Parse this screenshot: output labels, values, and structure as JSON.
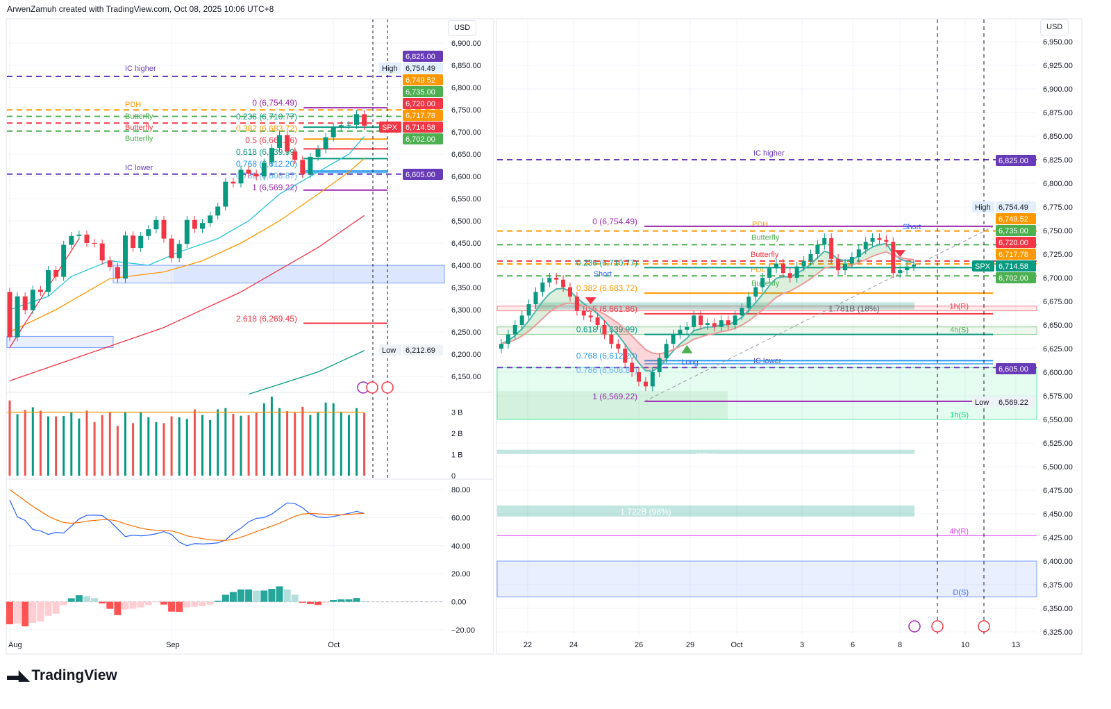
{
  "header": {
    "text": "ArwenZamuh created with TradingView.com, Oct 08, 2025 10:06 UTC+8"
  },
  "logo": {
    "text": "TradingView"
  },
  "currency": "USD",
  "colors": {
    "up": "#089981",
    "down": "#f23645",
    "purple": "#673ab7",
    "orange": "#ff9800",
    "green": "#4caf50",
    "red": "#f23645",
    "blue": "#2196f3",
    "teal": "#089981"
  },
  "chart_data": [
    {
      "type": "candlestick",
      "symbol": "SPX",
      "timeframe": "daily",
      "x_ticks": [
        {
          "label": "Aug",
          "index": 0
        },
        {
          "label": "Sep",
          "index": 21
        },
        {
          "label": "Oct",
          "index": 42
        }
      ],
      "y_ticks": [
        6900,
        6850,
        6800,
        6750,
        6700,
        6650,
        6600,
        6550,
        6500,
        6450,
        6400,
        6350,
        6300,
        6250,
        6200,
        6150
      ],
      "ylim": [
        6150,
        6900
      ],
      "open_first": 6340,
      "closes": [
        6238,
        6330,
        6299,
        6345,
        6340,
        6389,
        6374,
        6446,
        6466,
        6469,
        6450,
        6449,
        6411,
        6396,
        6370,
        6467,
        6439,
        6466,
        6481,
        6502,
        6460,
        6416,
        6448,
        6502,
        6482,
        6495,
        6512,
        6532,
        6588,
        6584,
        6615,
        6606,
        6600,
        6631,
        6664,
        6693,
        6656,
        6637,
        6605,
        6644,
        6661,
        6688,
        6711,
        6715,
        6716,
        6740,
        6714
      ],
      "moving_averages": [
        {
          "color": "#26c6da",
          "points": [
            [
              0,
              6300
            ],
            [
              5,
              6330
            ],
            [
              8,
              6375
            ],
            [
              13,
              6410
            ],
            [
              18,
              6400
            ],
            [
              22,
              6430
            ],
            [
              27,
              6460
            ],
            [
              31,
              6500
            ],
            [
              35,
              6560
            ],
            [
              40,
              6610
            ],
            [
              44,
              6650
            ],
            [
              46,
              6690
            ]
          ]
        },
        {
          "color": "#ff9800",
          "points": [
            [
              0,
              6250
            ],
            [
              6,
              6300
            ],
            [
              13,
              6370
            ],
            [
              20,
              6385
            ],
            [
              25,
              6410
            ],
            [
              30,
              6450
            ],
            [
              35,
              6500
            ],
            [
              40,
              6560
            ],
            [
              44,
              6610
            ],
            [
              46,
              6640
            ]
          ]
        },
        {
          "color": "#f23645",
          "points": [
            [
              0,
              6140
            ],
            [
              10,
              6200
            ],
            [
              20,
              6260
            ],
            [
              30,
              6340
            ],
            [
              40,
              6440
            ],
            [
              46,
              6512
            ]
          ]
        },
        {
          "color": "#089981",
          "points": [
            [
              31,
              6110
            ],
            [
              40,
              6160
            ],
            [
              46,
              6208
            ]
          ]
        },
        {
          "color": "#f23645",
          "points": [
            [
              0,
              6215
            ],
            [
              9,
              6460
            ]
          ]
        }
      ],
      "dashed_levels": [
        {
          "price": 6825,
          "color": "#673ab7",
          "label": "IC higher"
        },
        {
          "price": 6749.52,
          "color": "#ff9800",
          "label": "PDH"
        },
        {
          "price": 6735,
          "color": "#4caf50",
          "label": "Butterfly"
        },
        {
          "price": 6720,
          "color": "#f23645",
          "label": "Butterfly"
        },
        {
          "price": 6702,
          "color": "#4caf50",
          "label": "Butterfly"
        },
        {
          "price": 6605,
          "color": "#673ab7",
          "label": "IC lower"
        }
      ],
      "fib_levels": [
        {
          "label": "0 (6,754.49)",
          "price": 6754.49,
          "color": "#9c27b0"
        },
        {
          "label": "0.236 (6,710.77)",
          "price": 6710.77,
          "color": "#089981"
        },
        {
          "label": "0.382 (6,683.72)",
          "price": 6683.72,
          "color": "#ff9800"
        },
        {
          "label": "0.5 (6,661.86)",
          "price": 6661.86,
          "color": "#f23645"
        },
        {
          "label": "0.618 (6,639.99)",
          "price": 6639.99,
          "color": "#089981"
        },
        {
          "label": "0.768 (6,612.20)",
          "price": 6612.2,
          "color": "#2196f3"
        },
        {
          "label": "0.786 (6,608.87)",
          "price": 6608.87,
          "color": "#64b5f6"
        },
        {
          "label": "1 (6,569.22)",
          "price": 6569.22,
          "color": "#9c27b0"
        },
        {
          "label": "2.618 (6,269.45)",
          "price": 6269.45,
          "color": "#f23645"
        }
      ],
      "zones": [
        {
          "from": 6360,
          "to": 6400,
          "color": "#2962ff"
        },
        {
          "from": 6215,
          "to": 6240,
          "color": "#2962ff"
        }
      ],
      "price_badges": [
        {
          "text": "6,825.00",
          "bg": "#673ab7"
        },
        {
          "tag": "High",
          "text": "6,754.49",
          "bg": "#e3effd"
        },
        {
          "text": "6,749.52",
          "bg": "#ff9800"
        },
        {
          "text": "6,735.00",
          "bg": "#4caf50"
        },
        {
          "text": "6,720.00",
          "bg": "#f23645"
        },
        {
          "text": "6,717.78",
          "bg": "#ff9800"
        },
        {
          "tag": "SPX",
          "text": "6,714.58",
          "bg": "#f23645"
        },
        {
          "text": "6,702.00",
          "bg": "#4caf50"
        },
        {
          "text": "6,605.00",
          "bg": "#673ab7"
        },
        {
          "tag": "Low",
          "text": "6,212.69",
          "bg": "#eef1f6"
        }
      ],
      "volume": {
        "unit": "B",
        "y_ticks": [
          "3 B",
          "2 B",
          "1 B",
          "0"
        ],
        "values": [
          3.55,
          2.9,
          3.1,
          3.23,
          3.07,
          2.8,
          2.8,
          2.82,
          3.0,
          2.7,
          3.07,
          2.53,
          2.86,
          3.0,
          2.35,
          3.0,
          2.48,
          3.0,
          2.76,
          2.53,
          2.48,
          2.8,
          2.76,
          2.68,
          3.13,
          2.87,
          2.63,
          3.13,
          3.19,
          2.92,
          2.83,
          2.86,
          2.96,
          3.42,
          3.73,
          3.19,
          3.05,
          2.97,
          3.25,
          2.86,
          3.02,
          3.45,
          3.42,
          3.02,
          2.86,
          3.19,
          2.96
        ],
        "ma": 3.0
      },
      "oscillator": {
        "y_ticks": [
          "80.00",
          "60.00",
          "40.00",
          "20.00",
          "0.00",
          "−20.00"
        ],
        "blue": [
          72.5,
          60.5,
          58,
          51.5,
          50.5,
          48,
          49.5,
          49,
          54,
          59,
          61.7,
          61.8,
          61.5,
          57.5,
          52,
          46.5,
          47.5,
          47,
          47.5,
          48.5,
          50,
          48,
          42.5,
          40,
          41.5,
          41.2,
          41.5,
          42,
          44,
          49,
          52.5,
          57,
          59.5,
          60,
          62.5,
          66.5,
          70.5,
          70,
          67,
          62.5,
          60.5,
          60,
          60.8,
          62,
          63,
          64.5,
          63
        ],
        "orange": [
          80,
          76,
          72,
          68,
          64.5,
          61,
          58.5,
          56.5,
          56,
          56.5,
          57.5,
          58,
          58.5,
          58.5,
          57.5,
          55.5,
          54,
          52.5,
          51.5,
          51,
          50.8,
          50.5,
          49,
          47,
          46,
          45,
          44.2,
          43.8,
          43.7,
          44.5,
          46,
          48,
          50,
          52,
          54,
          56,
          58.5,
          61,
          62.5,
          63,
          62.7,
          62.3,
          62,
          62,
          62.3,
          62.7,
          63
        ],
        "histogram": [
          -16,
          -15.5,
          -17.5,
          -15,
          -14,
          -10,
          -8.5,
          -2.5,
          2.5,
          4.7,
          4,
          2.6,
          -1.2,
          -5,
          -9.5,
          -5.5,
          -5,
          -4,
          -2.3,
          -0.3,
          -2,
          -7,
          -7.2,
          -4,
          -3.5,
          -3.2,
          -2,
          0.8,
          5,
          7,
          8.8,
          8.8,
          8,
          8,
          9.2,
          11,
          8.8,
          5,
          -0.7,
          -1.6,
          -2.3,
          -0.6,
          1.3,
          1.7,
          1.7,
          2.7,
          0.6
        ]
      }
    },
    {
      "type": "candlestick",
      "symbol": "SPX",
      "timeframe": "intraday",
      "x_ticks": [
        "22",
        "24",
        "26",
        "29",
        "Oct",
        "3",
        "6",
        "8",
        "10",
        "13"
      ],
      "y_ticks": [
        6950,
        6925,
        6900,
        6875,
        6850,
        6825,
        6800,
        6775,
        6750,
        6725,
        6700,
        6675,
        6650,
        6625,
        6600,
        6575,
        6550,
        6525,
        6500,
        6475,
        6450,
        6425,
        6400,
        6375,
        6350,
        6325
      ],
      "ylim": [
        6325,
        6950
      ],
      "closes": [
        6630,
        6640,
        6650,
        6660,
        6672,
        6685,
        6695,
        6700,
        6698,
        6690,
        6680,
        6665,
        6660,
        6658,
        6650,
        6640,
        6630,
        6625,
        6610,
        6600,
        6590,
        6585,
        6600,
        6615,
        6630,
        6640,
        6645,
        6648,
        6660,
        6650,
        6652,
        6648,
        6655,
        6650,
        6660,
        6668,
        6680,
        6690,
        6700,
        6710,
        6715,
        6705,
        6700,
        6712,
        6718,
        6725,
        6735,
        6742,
        6720,
        6708,
        6715,
        6722,
        6730,
        6738,
        6742,
        6740,
        6738,
        6705,
        6708,
        6712,
        6714
      ],
      "dashed_levels": [
        {
          "price": 6825,
          "color": "#673ab7",
          "label": "IC higher"
        },
        {
          "price": 6749.52,
          "color": "#ff9800",
          "label": "PDH"
        },
        {
          "price": 6735,
          "color": "#4caf50",
          "label": "Butterfly"
        },
        {
          "price": 6717.78,
          "color": "#f23645",
          "label": "Butterfly"
        },
        {
          "price": 6714.58,
          "color": "#ff9800",
          "label": "PDL"
        },
        {
          "price": 6702,
          "color": "#4caf50",
          "label": "Butterfly"
        },
        {
          "price": 6605,
          "color": "#673ab7",
          "label": "IC lower"
        }
      ],
      "fib_levels": [
        {
          "label": "0 (6,754.49)",
          "price": 6754.49,
          "color": "#9c27b0"
        },
        {
          "label": "0.236 (6,710.77)",
          "price": 6710.77,
          "color": "#089981"
        },
        {
          "label": "0.382 (6,683.72)",
          "price": 6683.72,
          "color": "#ff9800"
        },
        {
          "label": "0.5 (6,661.86)",
          "price": 6661.86,
          "color": "#f23645"
        },
        {
          "label": "0.618 (6,639.99)",
          "price": 6639.99,
          "color": "#089981"
        },
        {
          "label": "0.768 (6,612.20)",
          "price": 6612.2,
          "color": "#2196f3"
        },
        {
          "label": "0.786 (6,608.87)",
          "price": 6608.87,
          "color": "#64b5f6"
        },
        {
          "label": "1 (6,569.22)",
          "price": 6569.22,
          "color": "#9c27b0"
        }
      ],
      "sr_zones": [
        {
          "label": "1h(R)",
          "from": 6665,
          "to": 6670,
          "color": "#f23645"
        },
        {
          "label": "4h(S)",
          "from": 6640,
          "to": 6648,
          "color": "#4caf50"
        },
        {
          "label": "1h(S)",
          "from": 6550,
          "to": 6605,
          "color": "#00e676"
        },
        {
          "label": "4h(R)",
          "from": 6427,
          "to": 6427,
          "color": "#e040fb"
        },
        {
          "label": "D(S)",
          "from": 6362,
          "to": 6400,
          "color": "#2962ff"
        }
      ],
      "volume_profile": [
        {
          "label": "1.781B (18%)",
          "price": 6668
        },
        {
          "label": "... (55%)",
          "price": 6512
        },
        {
          "label": "1.722B (98%)",
          "price": 6453
        }
      ],
      "signals": [
        {
          "label": "Short",
          "type": "short",
          "index": 13
        },
        {
          "label": "Long",
          "type": "long",
          "index": 27
        },
        {
          "label": "Short",
          "type": "short",
          "index": 58
        }
      ],
      "price_badges": [
        {
          "text": "6,825.00",
          "bg": "#673ab7"
        },
        {
          "tag": "High",
          "text": "6,754.49",
          "bg": "#e3effd"
        },
        {
          "text": "6,749.52",
          "bg": "#ff9800"
        },
        {
          "text": "6,735.00",
          "bg": "#4caf50"
        },
        {
          "text": "6,720.00",
          "bg": "#f23645"
        },
        {
          "text": "6,717.78",
          "bg": "#ff9800"
        },
        {
          "tag": "SPX",
          "text": "6,714.58",
          "bg": "#089981"
        },
        {
          "text": "6,702.00",
          "bg": "#4caf50"
        },
        {
          "text": "6,605.00",
          "bg": "#673ab7"
        },
        {
          "tag": "Low",
          "text": "6,569.22",
          "bg": "#eef1f6"
        }
      ]
    }
  ]
}
